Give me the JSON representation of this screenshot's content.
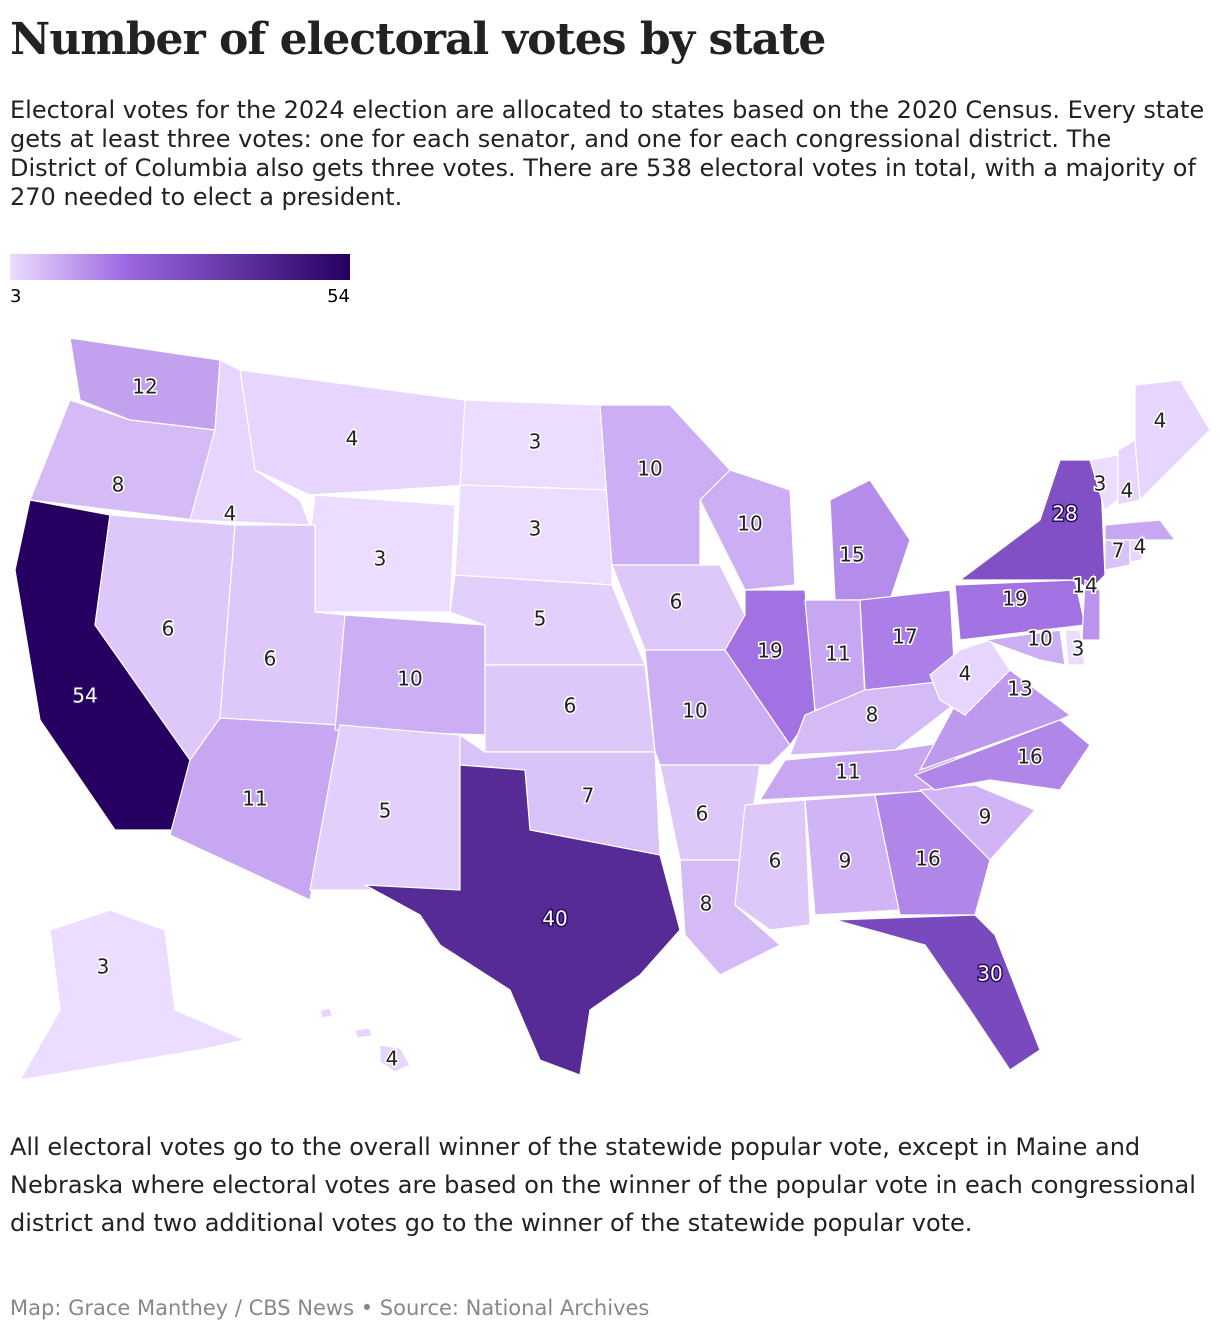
{
  "header": {
    "title": "Number of electoral votes by state",
    "subtitle": "Electoral votes for the 2024 election are allocated to states based on the 2020 Census. Every state gets at least three votes: one for each senator, and one for each congressional district. The District of Columbia also gets three votes. There are 538 electoral votes in total, with a majority of 270 needed to elect a president."
  },
  "legend": {
    "min": 3,
    "max": 54
  },
  "map": {
    "values": [
      12,
      8,
      54,
      4,
      6,
      4,
      3,
      6,
      11,
      10,
      5,
      3,
      3,
      5,
      6,
      7,
      40,
      10,
      6,
      10,
      6,
      8,
      10,
      19,
      15,
      11,
      17,
      8,
      11,
      6,
      9,
      16,
      30,
      9,
      16,
      13,
      4,
      19,
      28,
      10,
      3,
      14,
      3,
      4,
      4,
      11,
      7,
      4,
      3,
      4
    ]
  },
  "footer": {
    "note": "All electoral votes go to the overall winner of the statewide popular vote, except in Maine and Nebraska where electoral votes are based on the winner of the popular vote in each congressional district and two additional votes go to the winner of the statewide popular vote.",
    "credit": "Map: Grace Manthey / CBS News • Source: National Archives"
  }
}
